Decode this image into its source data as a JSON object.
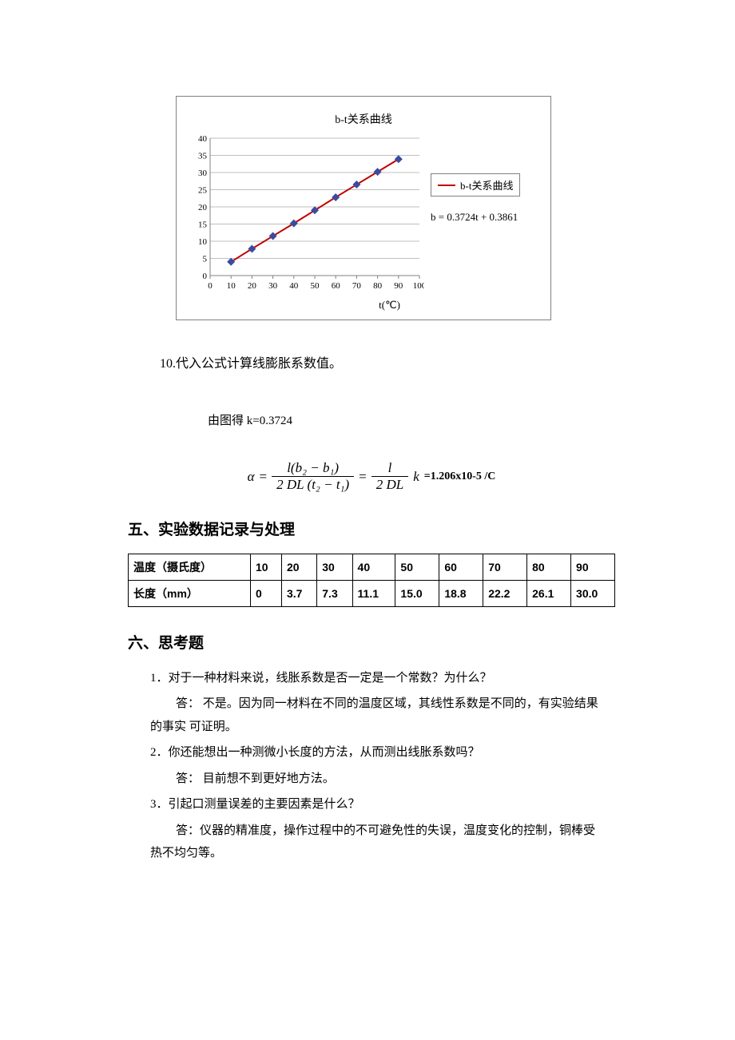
{
  "chart": {
    "type": "line",
    "title": "b-t关系曲线",
    "legend_label": "b-t关系曲线",
    "equation": "b = 0.3724t + 0.3861",
    "x_label": "t(℃)",
    "line_color": "#c00000",
    "marker_color": "#3b4ba0",
    "marker_shape": "diamond",
    "marker_size": 5,
    "line_width": 2,
    "gridline_color": "#bfbfbf",
    "axis_color": "#808080",
    "tick_font_size": 11,
    "title_font_size": 14,
    "background_color": "#ffffff",
    "xlim": [
      0,
      100
    ],
    "ylim": [
      0,
      40
    ],
    "xtick_step": 10,
    "ytick_step": 5,
    "xticks": [
      0,
      10,
      20,
      30,
      40,
      50,
      60,
      70,
      80,
      90,
      100
    ],
    "yticks": [
      0,
      5,
      10,
      15,
      20,
      25,
      30,
      35,
      40
    ],
    "x": [
      10,
      20,
      30,
      40,
      50,
      60,
      70,
      80,
      90
    ],
    "y": [
      4.0,
      7.8,
      11.5,
      15.2,
      19.0,
      22.8,
      26.5,
      30.2,
      33.9
    ]
  },
  "step10": "10.代入公式计算线膨胀系数值。",
  "derived_k": "由图得 k=0.3724",
  "formula": {
    "lhs": "α",
    "num1": "l(b₂ − b₁)",
    "den1": "2 DL (t₂ − t₁)",
    "num2": "l",
    "den2": "2 DL",
    "tail": "k",
    "result": "=1.206x10-5 /C"
  },
  "section5": "五、实验数据记录与处理",
  "data_table": {
    "row_labels": [
      "温度（摄氏度）",
      "长度（mm）"
    ],
    "columns": [
      "10",
      "20",
      "30",
      "40",
      "50",
      "60",
      "70",
      "80",
      "90"
    ],
    "values": [
      "0",
      "3.7",
      "7.3",
      "11.1",
      "15.0",
      "18.8",
      "22.2",
      "26.1",
      "30.0"
    ]
  },
  "section6": "六、思考题",
  "qa": {
    "q1": "1．对于一种材料来说，线胀系数是否一定是一个常数？为什么？",
    "a1a": "答： 不是。因为同一材料在不同的温度区域，其线性系数是不同的，有实验结果",
    "a1b": "的事实 可证明。",
    "q2": "2．你还能想出一种测微小长度的方法，从而测出线胀系数吗？",
    "a2": "答： 目前想不到更好地方法。",
    "q3": "3．引起口测量误差的主要因素是什么？",
    "a3a": "答：仪器的精准度，操作过程中的不可避免性的失误，温度变化的控制，铜棒受",
    "a3b": "热不均匀等。"
  }
}
